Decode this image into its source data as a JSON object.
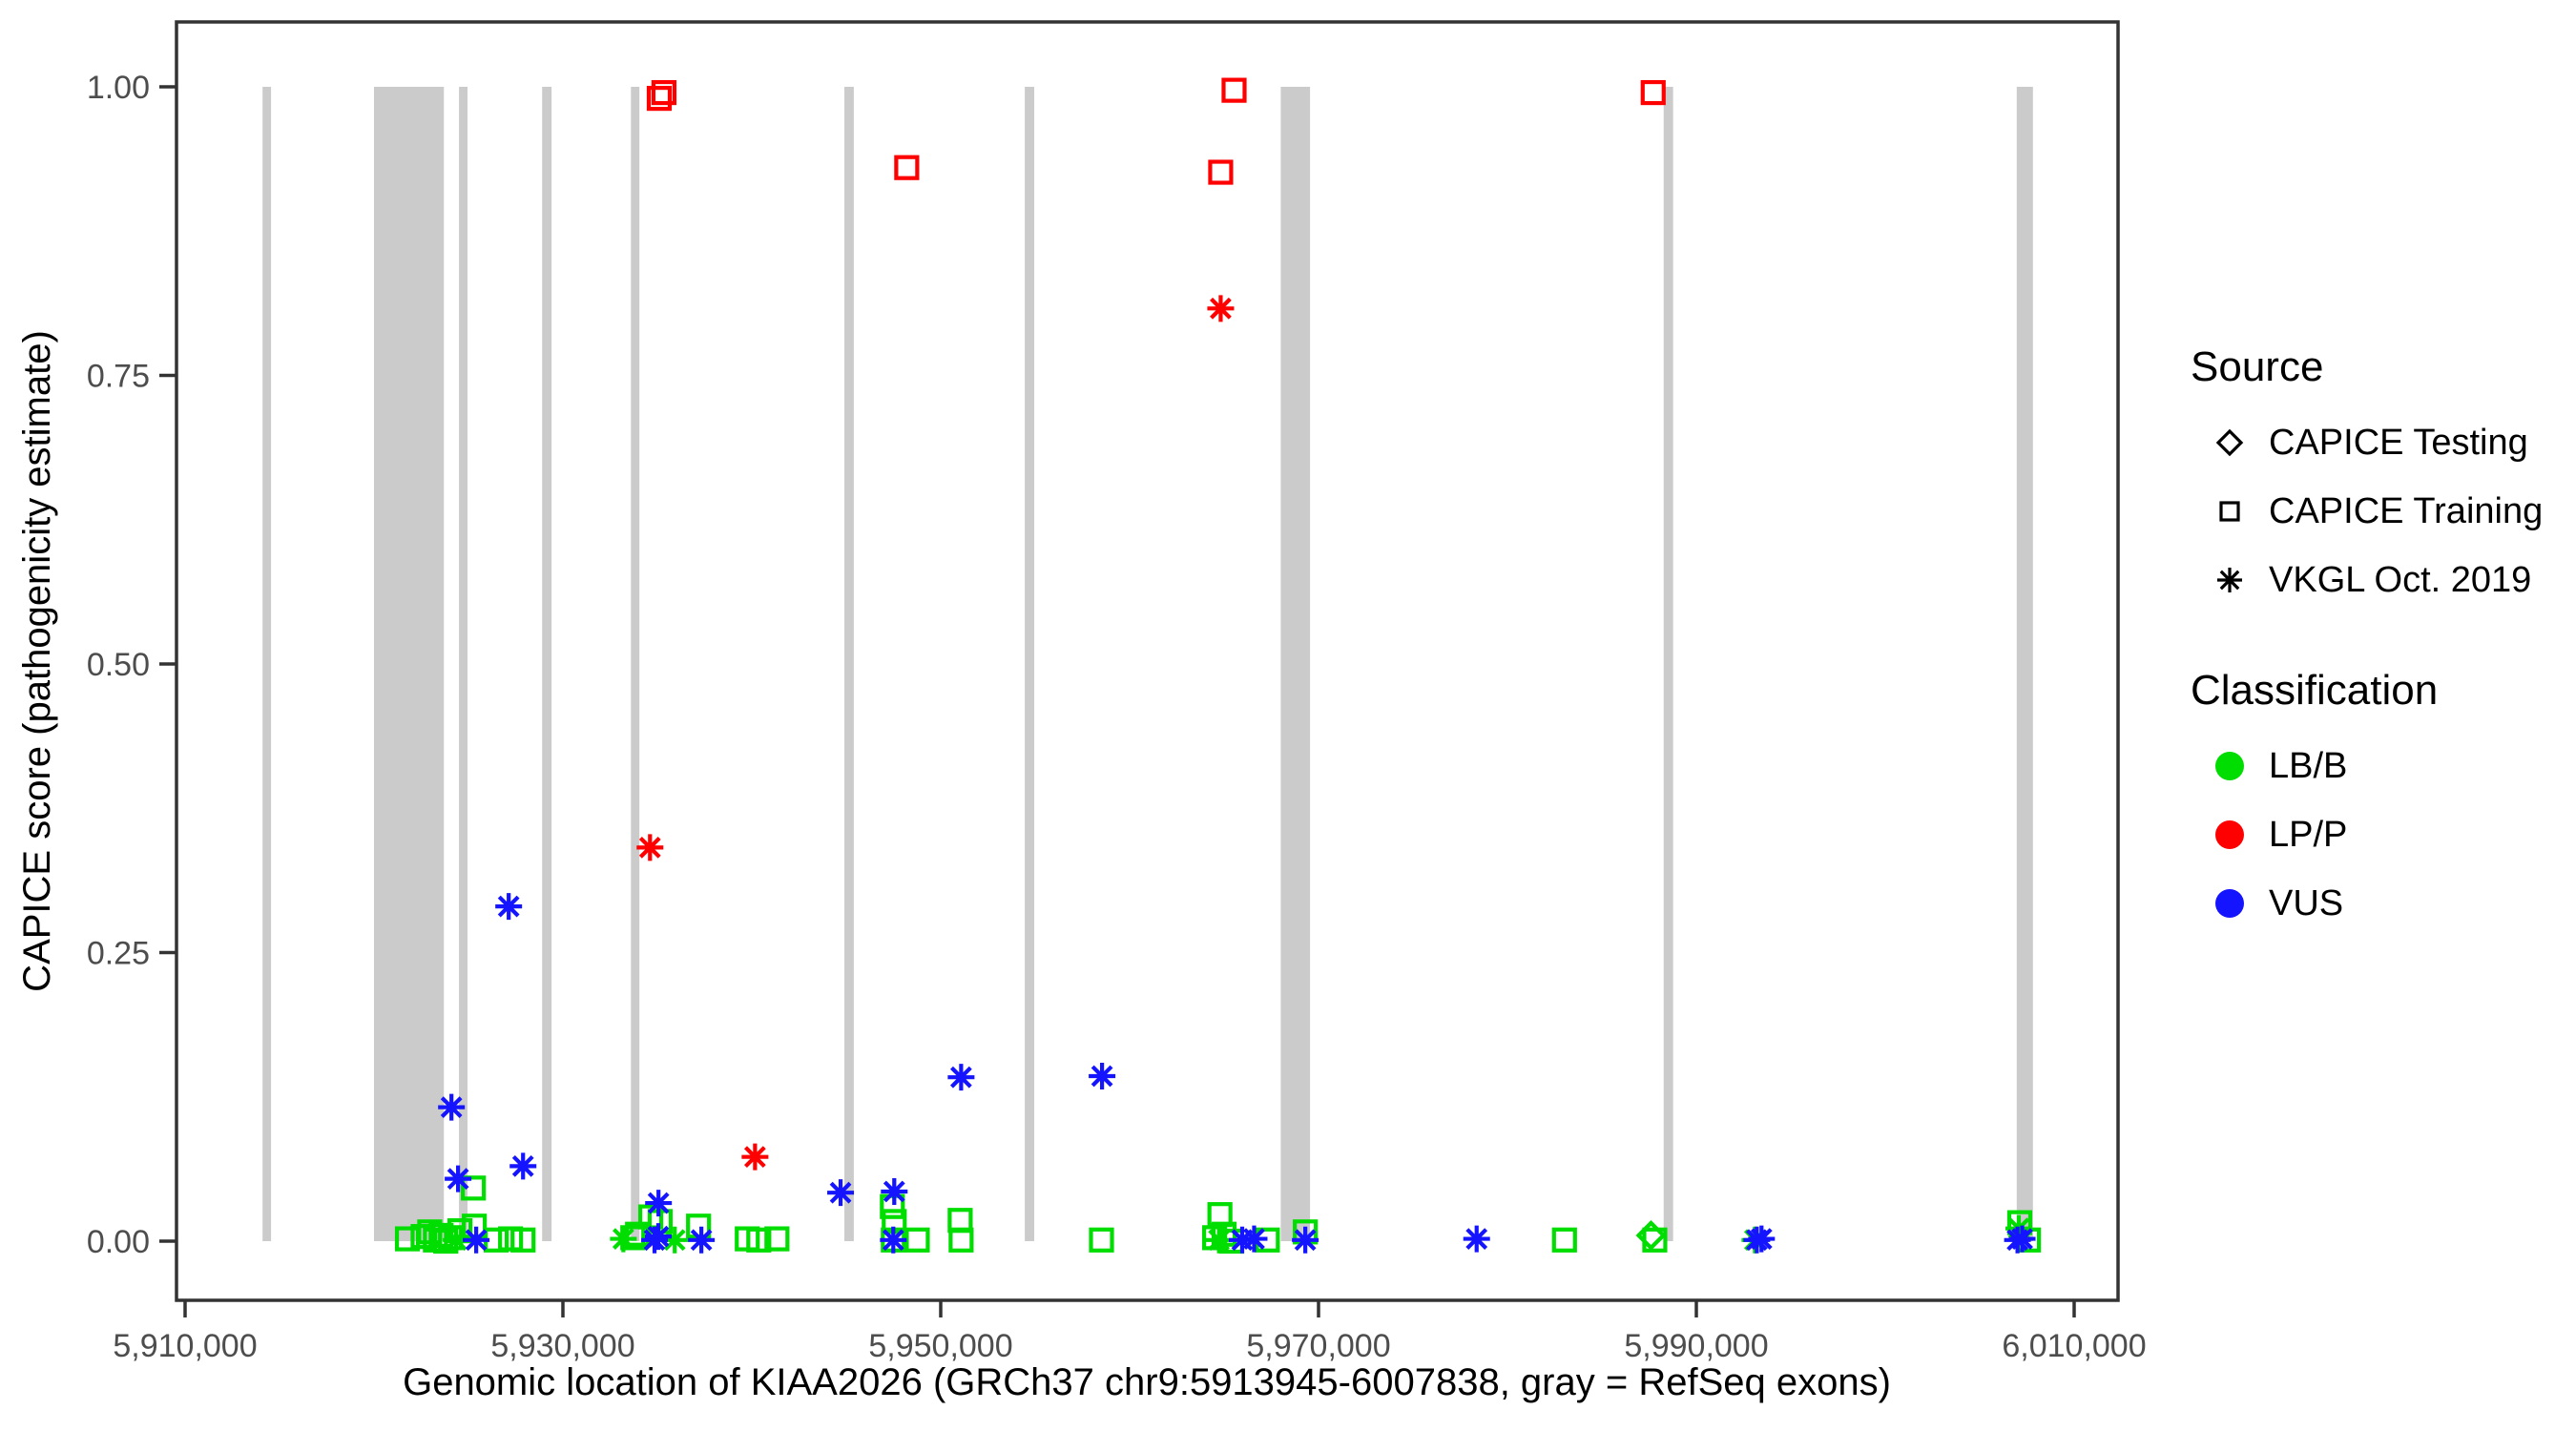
{
  "chart_data": {
    "type": "scatter",
    "xlabel": "Genomic location of KIAA2026 (GRCh37 chr9:5913945-6007838, gray = RefSeq exons)",
    "ylabel": "CAPICE score (pathogenicity estimate)",
    "x_axis": {
      "min": 5910000,
      "max": 6010000,
      "ticks": [
        5910000,
        5930000,
        5950000,
        5970000,
        5990000,
        6010000
      ],
      "tick_labels": [
        "5,910,000",
        "5,930,000",
        "5,950,000",
        "5,970,000",
        "5,990,000",
        "6,010,000"
      ]
    },
    "y_axis": {
      "min": 0.0,
      "max": 1.0,
      "ticks": [
        0.0,
        0.25,
        0.5,
        0.75,
        1.0
      ],
      "tick_labels": [
        "0.00",
        "0.25",
        "0.50",
        "0.75",
        "1.00"
      ]
    },
    "grid": false,
    "legend_position": "right",
    "exon_color": "#cbcbcb",
    "panel_border_color": "#333333",
    "colors": {
      "LB/B": "#00dd00",
      "LP/P": "#ff0000",
      "VUS": "#1414ff"
    },
    "shape_for_source": {
      "CAPICE Testing": "diamond",
      "CAPICE Training": "square",
      "VKGL Oct. 2019": "asterisk"
    },
    "exons": [
      [
        5914100,
        5914550
      ],
      [
        5920000,
        5923700
      ],
      [
        5924500,
        5924950
      ],
      [
        5928900,
        5929400
      ],
      [
        5933600,
        5934050
      ],
      [
        5944900,
        5945400
      ],
      [
        5954450,
        5954950
      ],
      [
        5968000,
        5969550
      ],
      [
        5988270,
        5988770
      ],
      [
        6006960,
        6007820
      ]
    ],
    "points": [
      {
        "pos": 5921770,
        "score": 0.002,
        "shape": "square",
        "cls": "LB/B"
      },
      {
        "pos": 5922600,
        "score": 0.004,
        "shape": "square",
        "cls": "LB/B"
      },
      {
        "pos": 5922950,
        "score": 0.008,
        "shape": "square",
        "cls": "LB/B"
      },
      {
        "pos": 5923250,
        "score": 0.001,
        "shape": "square",
        "cls": "LB/B"
      },
      {
        "pos": 5923550,
        "score": 0.005,
        "shape": "square",
        "cls": "LB/B"
      },
      {
        "pos": 5923800,
        "score": 0.0,
        "shape": "square",
        "cls": "LB/B"
      },
      {
        "pos": 5924050,
        "score": 0.003,
        "shape": "square",
        "cls": "LB/B"
      },
      {
        "pos": 5924350,
        "score": 0.001,
        "shape": "asterisk",
        "cls": "LB/B"
      },
      {
        "pos": 5924550,
        "score": 0.009,
        "shape": "square",
        "cls": "LB/B"
      },
      {
        "pos": 5925260,
        "score": 0.046,
        "shape": "square",
        "cls": "LB/B"
      },
      {
        "pos": 5925310,
        "score": 0.013,
        "shape": "square",
        "cls": "LB/B"
      },
      {
        "pos": 5926470,
        "score": 0.001,
        "shape": "square",
        "cls": "LB/B"
      },
      {
        "pos": 5927230,
        "score": 0.002,
        "shape": "square",
        "cls": "LB/B"
      },
      {
        "pos": 5927890,
        "score": 0.001,
        "shape": "square",
        "cls": "LB/B"
      },
      {
        "pos": 5933200,
        "score": 0.002,
        "shape": "asterisk",
        "cls": "LB/B"
      },
      {
        "pos": 5933700,
        "score": 0.003,
        "shape": "square",
        "cls": "LB/B"
      },
      {
        "pos": 5933950,
        "score": 0.006,
        "shape": "square",
        "cls": "LB/B"
      },
      {
        "pos": 5934650,
        "score": 0.021,
        "shape": "square",
        "cls": "LB/B"
      },
      {
        "pos": 5935150,
        "score": 0.017,
        "shape": "square",
        "cls": "LB/B"
      },
      {
        "pos": 5935920,
        "score": 0.001,
        "shape": "asterisk",
        "cls": "LB/B"
      },
      {
        "pos": 5937180,
        "score": 0.013,
        "shape": "square",
        "cls": "LB/B"
      },
      {
        "pos": 5939760,
        "score": 0.002,
        "shape": "square",
        "cls": "LB/B"
      },
      {
        "pos": 5940370,
        "score": 0.001,
        "shape": "square",
        "cls": "LB/B"
      },
      {
        "pos": 5941330,
        "score": 0.002,
        "shape": "square",
        "cls": "LB/B"
      },
      {
        "pos": 5947440,
        "score": 0.03,
        "shape": "square",
        "cls": "LB/B"
      },
      {
        "pos": 5947540,
        "score": 0.017,
        "shape": "square",
        "cls": "LB/B"
      },
      {
        "pos": 5947490,
        "score": 0.001,
        "shape": "square",
        "cls": "LB/B"
      },
      {
        "pos": 5948760,
        "score": 0.001,
        "shape": "square",
        "cls": "LB/B"
      },
      {
        "pos": 5951030,
        "score": 0.018,
        "shape": "square",
        "cls": "LB/B"
      },
      {
        "pos": 5951080,
        "score": 0.001,
        "shape": "square",
        "cls": "LB/B"
      },
      {
        "pos": 5958510,
        "score": 0.001,
        "shape": "square",
        "cls": "LB/B"
      },
      {
        "pos": 5964500,
        "score": 0.003,
        "shape": "square",
        "cls": "LB/B"
      },
      {
        "pos": 5964730,
        "score": 0.001,
        "shape": "asterisk",
        "cls": "LB/B"
      },
      {
        "pos": 5964780,
        "score": 0.023,
        "shape": "square",
        "cls": "LB/B"
      },
      {
        "pos": 5965000,
        "score": 0.006,
        "shape": "square",
        "cls": "LB/B"
      },
      {
        "pos": 5965400,
        "score": 0.0,
        "shape": "square",
        "cls": "LB/B"
      },
      {
        "pos": 5967290,
        "score": 0.001,
        "shape": "square",
        "cls": "LB/B"
      },
      {
        "pos": 5969300,
        "score": 0.008,
        "shape": "square",
        "cls": "LB/B"
      },
      {
        "pos": 5983020,
        "score": 0.001,
        "shape": "square",
        "cls": "LB/B"
      },
      {
        "pos": 5987600,
        "score": 0.005,
        "shape": "diamond",
        "cls": "LB/B"
      },
      {
        "pos": 5987800,
        "score": 0.001,
        "shape": "square",
        "cls": "LB/B"
      },
      {
        "pos": 5993100,
        "score": 0.001,
        "shape": "asterisk",
        "cls": "LB/B"
      },
      {
        "pos": 6007070,
        "score": 0.011,
        "shape": "asterisk",
        "cls": "LB/B"
      },
      {
        "pos": 6007120,
        "score": 0.016,
        "shape": "square",
        "cls": "LB/B"
      },
      {
        "pos": 6007580,
        "score": 0.001,
        "shape": "square",
        "cls": "LB/B"
      },
      {
        "pos": 5924100,
        "score": 0.116,
        "shape": "asterisk",
        "cls": "VUS"
      },
      {
        "pos": 5924450,
        "score": 0.054,
        "shape": "asterisk",
        "cls": "VUS"
      },
      {
        "pos": 5925410,
        "score": 0.001,
        "shape": "asterisk",
        "cls": "VUS"
      },
      {
        "pos": 5927130,
        "score": 0.29,
        "shape": "asterisk",
        "cls": "VUS"
      },
      {
        "pos": 5927890,
        "score": 0.065,
        "shape": "asterisk",
        "cls": "VUS"
      },
      {
        "pos": 5934850,
        "score": 0.001,
        "shape": "asterisk",
        "cls": "VUS"
      },
      {
        "pos": 5935050,
        "score": 0.004,
        "shape": "asterisk",
        "cls": "VUS"
      },
      {
        "pos": 5935060,
        "score": 0.033,
        "shape": "asterisk",
        "cls": "VUS"
      },
      {
        "pos": 5937330,
        "score": 0.001,
        "shape": "asterisk",
        "cls": "VUS"
      },
      {
        "pos": 5944700,
        "score": 0.042,
        "shape": "asterisk",
        "cls": "VUS"
      },
      {
        "pos": 5947540,
        "score": 0.043,
        "shape": "asterisk",
        "cls": "VUS"
      },
      {
        "pos": 5947490,
        "score": 0.001,
        "shape": "asterisk",
        "cls": "VUS"
      },
      {
        "pos": 5951080,
        "score": 0.142,
        "shape": "asterisk",
        "cls": "VUS"
      },
      {
        "pos": 5958540,
        "score": 0.143,
        "shape": "asterisk",
        "cls": "VUS"
      },
      {
        "pos": 5965960,
        "score": 0.001,
        "shape": "asterisk",
        "cls": "VUS"
      },
      {
        "pos": 5966590,
        "score": 0.002,
        "shape": "asterisk",
        "cls": "VUS"
      },
      {
        "pos": 5969300,
        "score": 0.001,
        "shape": "asterisk",
        "cls": "VUS"
      },
      {
        "pos": 5978370,
        "score": 0.002,
        "shape": "asterisk",
        "cls": "VUS"
      },
      {
        "pos": 5993200,
        "score": 0.001,
        "shape": "asterisk",
        "cls": "VUS"
      },
      {
        "pos": 5993450,
        "score": 0.002,
        "shape": "asterisk",
        "cls": "VUS"
      },
      {
        "pos": 6007000,
        "score": 0.001,
        "shape": "asterisk",
        "cls": "VUS"
      },
      {
        "pos": 6007250,
        "score": 0.002,
        "shape": "asterisk",
        "cls": "VUS"
      },
      {
        "pos": 5935100,
        "score": 0.99,
        "shape": "square",
        "cls": "LP/P"
      },
      {
        "pos": 5935350,
        "score": 0.995,
        "shape": "square",
        "cls": "LP/P"
      },
      {
        "pos": 5948200,
        "score": 0.93,
        "shape": "square",
        "cls": "LP/P"
      },
      {
        "pos": 5964820,
        "score": 0.926,
        "shape": "square",
        "cls": "LP/P"
      },
      {
        "pos": 5965530,
        "score": 0.997,
        "shape": "square",
        "cls": "LP/P"
      },
      {
        "pos": 5987715,
        "score": 0.995,
        "shape": "square",
        "cls": "LP/P"
      },
      {
        "pos": 5964820,
        "score": 0.808,
        "shape": "asterisk",
        "cls": "LP/P"
      },
      {
        "pos": 5934610,
        "score": 0.341,
        "shape": "asterisk",
        "cls": "LP/P"
      },
      {
        "pos": 5940170,
        "score": 0.073,
        "shape": "asterisk",
        "cls": "LP/P"
      }
    ]
  },
  "legend": {
    "source": {
      "title": "Source",
      "items": [
        {
          "shape": "diamond",
          "label": "CAPICE Testing"
        },
        {
          "shape": "square",
          "label": "CAPICE Training"
        },
        {
          "shape": "asterisk",
          "label": "VKGL Oct. 2019"
        }
      ]
    },
    "classification": {
      "title": "Classification",
      "items": [
        {
          "color": "#00dd00",
          "label": "LB/B"
        },
        {
          "color": "#ff0000",
          "label": "LP/P"
        },
        {
          "color": "#1414ff",
          "label": "VUS"
        }
      ]
    }
  }
}
